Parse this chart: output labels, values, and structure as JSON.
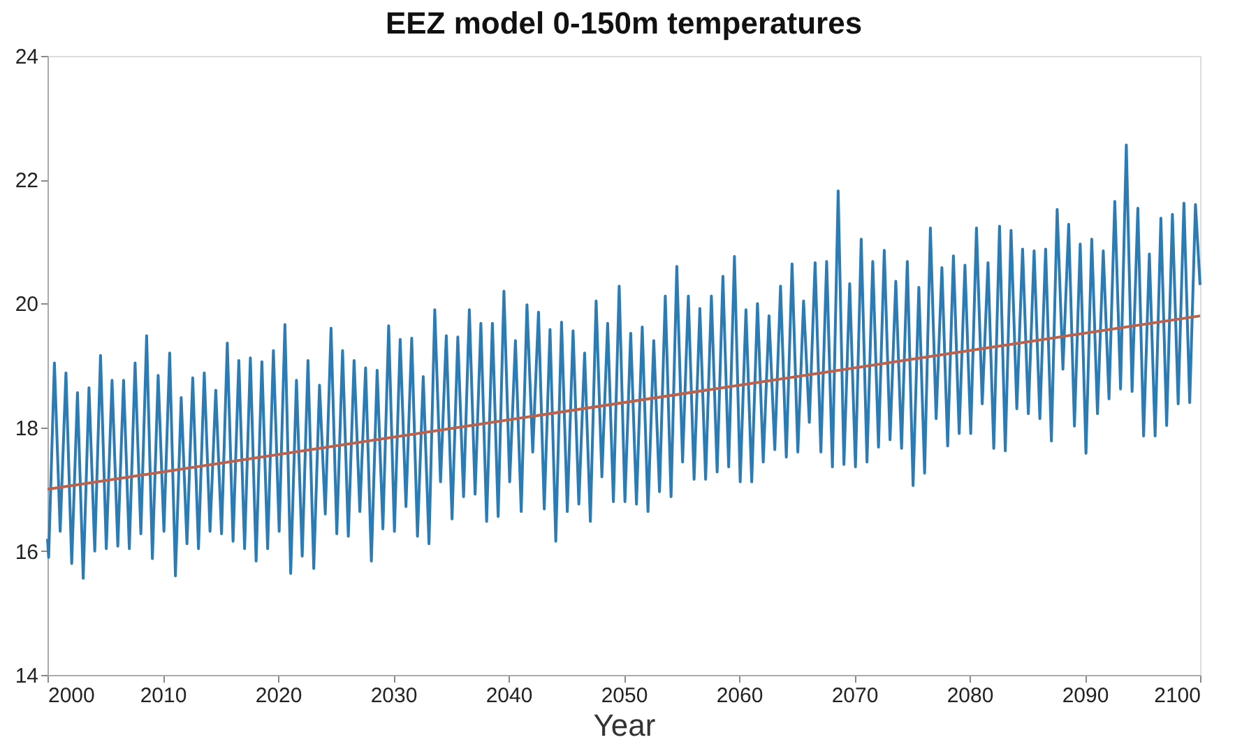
{
  "chart_data": {
    "type": "line",
    "title": "EEZ model 0-150m temperatures",
    "xlabel": "Year",
    "xlim": [
      2000,
      2100
    ],
    "xticks": [
      2000,
      2010,
      2020,
      2030,
      2040,
      2050,
      2060,
      2070,
      2080,
      2090,
      2100
    ],
    "ylim": [
      14,
      24
    ],
    "yticks": [
      14,
      16,
      18,
      20,
      22,
      24
    ],
    "grid": false,
    "marker": "none",
    "line_style": "solid",
    "series": [
      {
        "color": "#2b7bb5",
        "x": [
          2000,
          2000.1,
          2000.6,
          2001.1,
          2001.6,
          2002.1,
          2002.6,
          2003.1,
          2003.6,
          2004.1,
          2004.6,
          2005.1,
          2005.6,
          2006.1,
          2006.6,
          2007.1,
          2007.6,
          2008.1,
          2008.6,
          2009.1,
          2009.6,
          2010.1,
          2010.6,
          2011.1,
          2011.6,
          2012.1,
          2012.6,
          2013.1,
          2013.6,
          2014.1,
          2014.6,
          2015.1,
          2015.6,
          2016.1,
          2016.6,
          2017.1,
          2017.6,
          2018.1,
          2018.6,
          2019.1,
          2019.6,
          2020.1,
          2020.6,
          2021.1,
          2021.6,
          2022.1,
          2022.6,
          2023.1,
          2023.6,
          2024.1,
          2024.6,
          2025.1,
          2025.6,
          2026.1,
          2026.6,
          2027.1,
          2027.6,
          2028.1,
          2028.6,
          2029.1,
          2029.6,
          2030.1,
          2030.6,
          2031.1,
          2031.6,
          2032.1,
          2032.6,
          2033.1,
          2033.6,
          2034.1,
          2034.6,
          2035.1,
          2035.6,
          2036.1,
          2036.6,
          2037.1,
          2037.6,
          2038.1,
          2038.6,
          2039.1,
          2039.6,
          2040.1,
          2040.6,
          2041.1,
          2041.6,
          2042.1,
          2042.6,
          2043.1,
          2043.6,
          2044.1,
          2044.6,
          2045.1,
          2045.6,
          2046.1,
          2046.6,
          2047.1,
          2047.6,
          2048.1,
          2048.6,
          2049.1,
          2049.6,
          2050.1,
          2050.6,
          2051.1,
          2051.6,
          2052.1,
          2052.6,
          2053.1,
          2053.6,
          2054.1,
          2054.6,
          2055.1,
          2055.6,
          2056.1,
          2056.6,
          2057.1,
          2057.6,
          2058.1,
          2058.6,
          2059.1,
          2059.6,
          2060.1,
          2060.6,
          2061.1,
          2061.6,
          2062.1,
          2062.6,
          2063.1,
          2063.6,
          2064.1,
          2064.6,
          2065.1,
          2065.6,
          2066.1,
          2066.6,
          2067.1,
          2067.6,
          2068.1,
          2068.6,
          2069.1,
          2069.6,
          2070.1,
          2070.6,
          2071.1,
          2071.6,
          2072.1,
          2072.6,
          2073.1,
          2073.6,
          2074.1,
          2074.6,
          2075.1,
          2075.6,
          2076.1,
          2076.6,
          2077.1,
          2077.6,
          2078.1,
          2078.6,
          2079.1,
          2079.6,
          2080.1,
          2080.6,
          2081.1,
          2081.6,
          2082.1,
          2082.6,
          2083.1,
          2083.6,
          2084.1,
          2084.6,
          2085.1,
          2085.6,
          2086.1,
          2086.6,
          2087.1,
          2087.6,
          2088.1,
          2088.6,
          2089.1,
          2089.6,
          2090.1,
          2090.6,
          2091.1,
          2091.6,
          2092.1,
          2092.6,
          2093.1,
          2093.6,
          2094.1,
          2094.6,
          2095.1,
          2095.6,
          2096.1,
          2096.6,
          2097.1,
          2097.6,
          2098.1,
          2098.6,
          2099.1,
          2099.6,
          2100
        ],
        "values": [
          16.2,
          15.9,
          19.04,
          16.32,
          18.88,
          15.8,
          18.56,
          15.56,
          18.64,
          16.0,
          19.16,
          16.04,
          18.76,
          16.08,
          18.76,
          16.04,
          19.04,
          16.28,
          19.48,
          15.88,
          18.84,
          16.32,
          19.2,
          15.6,
          18.48,
          16.12,
          18.8,
          16.04,
          18.88,
          16.32,
          18.6,
          16.28,
          19.36,
          16.16,
          19.08,
          16.04,
          19.12,
          15.84,
          19.06,
          16.04,
          19.24,
          16.32,
          19.66,
          15.64,
          18.76,
          15.92,
          19.08,
          15.72,
          18.68,
          16.6,
          19.6,
          16.28,
          19.24,
          16.24,
          19.08,
          16.64,
          18.96,
          15.84,
          18.92,
          16.36,
          19.64,
          16.32,
          19.42,
          16.72,
          19.44,
          16.24,
          18.82,
          16.12,
          19.9,
          17.12,
          19.48,
          16.52,
          19.46,
          16.88,
          19.9,
          16.92,
          19.68,
          16.48,
          19.68,
          16.56,
          20.2,
          17.12,
          19.4,
          16.64,
          19.98,
          17.6,
          19.86,
          16.68,
          19.58,
          16.16,
          19.7,
          16.64,
          19.56,
          16.76,
          19.2,
          16.48,
          20.04,
          17.2,
          19.68,
          16.8,
          20.28,
          16.8,
          19.52,
          16.76,
          19.62,
          16.64,
          19.4,
          16.96,
          20.12,
          16.88,
          20.6,
          17.44,
          20.12,
          17.16,
          19.92,
          17.16,
          20.12,
          17.28,
          20.44,
          17.36,
          20.76,
          17.12,
          19.9,
          17.12,
          20.0,
          17.44,
          19.8,
          17.64,
          20.28,
          17.52,
          20.64,
          17.6,
          20.04,
          18.08,
          20.66,
          17.6,
          20.68,
          17.36,
          21.82,
          17.4,
          20.32,
          17.36,
          21.04,
          17.44,
          20.68,
          17.68,
          20.86,
          17.8,
          20.36,
          17.66,
          20.68,
          17.06,
          20.26,
          17.26,
          21.22,
          18.14,
          20.58,
          17.7,
          20.77,
          17.9,
          20.62,
          17.9,
          21.22,
          18.38,
          20.66,
          17.66,
          21.25,
          17.62,
          21.18,
          18.3,
          20.88,
          18.22,
          20.85,
          18.14,
          20.88,
          17.78,
          21.52,
          18.94,
          21.28,
          18.02,
          20.96,
          17.58,
          21.04,
          18.22,
          20.85,
          18.46,
          21.65,
          18.62,
          22.56,
          18.58,
          21.54,
          17.86,
          20.8,
          17.86,
          21.38,
          18.03,
          21.44,
          18.38,
          21.62,
          18.4,
          21.6,
          20.3
        ]
      },
      {
        "color": "#b9634f",
        "x": [
          2000,
          2100
        ],
        "values": [
          17.0,
          19.8
        ]
      }
    ]
  }
}
